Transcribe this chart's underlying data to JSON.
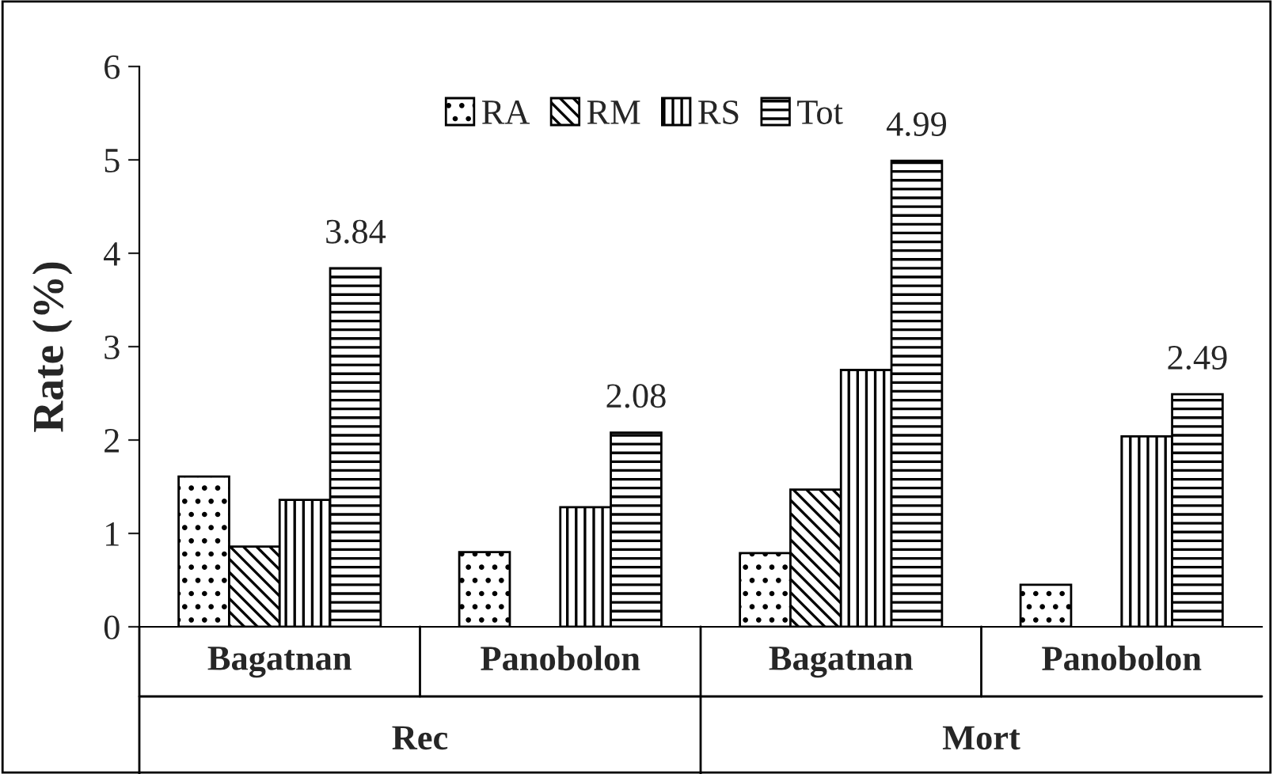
{
  "chart_data": {
    "type": "bar",
    "ylabel": "Rate (%)",
    "categories": [
      "Bagatnan",
      "Panobolon",
      "Bagatnan",
      "Panobolon"
    ],
    "annotations": [
      "Rec",
      "Mort"
    ],
    "series": [
      {
        "name": "RA",
        "color": "#000000",
        "values": [
          1.61,
          0.8,
          0.79,
          0.45
        ]
      },
      {
        "name": "RM",
        "color": "#000000",
        "values": [
          0.86,
          null,
          1.47,
          null
        ]
      },
      {
        "name": "RS",
        "color": "#000000",
        "values": [
          1.36,
          1.28,
          2.75,
          2.04
        ]
      },
      {
        "name": "Tot",
        "color": "#000000",
        "values": [
          3.84,
          2.08,
          4.99,
          2.49
        ],
        "value_labels": [
          "3.84",
          "2.08",
          "4.99",
          "2.49"
        ]
      }
    ],
    "ylim": [
      0,
      6
    ],
    "yticks": [
      0,
      1,
      2,
      3,
      4,
      5,
      6
    ],
    "grid": false,
    "legend": "top"
  }
}
